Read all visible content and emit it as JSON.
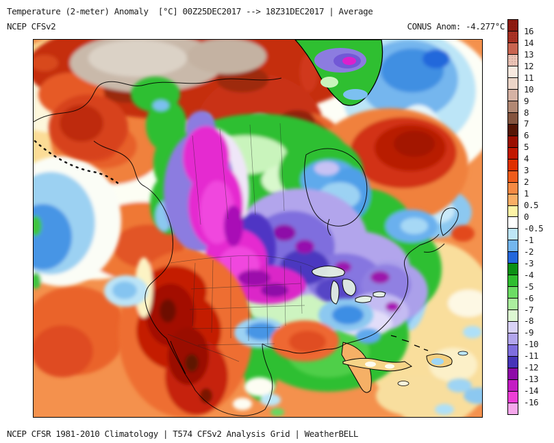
{
  "header": {
    "title": "Temperature (2-meter) Anomaly  [°C] 00Z25DEC2017 --> 18Z31DEC2017 | Average",
    "model": "NCEP CFSv2",
    "stat": "CONUS Anom: -4.277°C"
  },
  "footer": {
    "credit": "NCEP CFSR 1981-2010 Climatology | T574 CFSv2 Analysis Grid | WeatherBELL"
  },
  "colorbar": {
    "unit": "°C",
    "segments": [
      {
        "color": "#8E1B10",
        "label": "16",
        "stipple": true
      },
      {
        "color": "#A93224",
        "label": "14",
        "stipple": true
      },
      {
        "color": "#C86450",
        "label": "13"
      },
      {
        "color": "#EBC4B6",
        "label": "12",
        "stipple": true
      },
      {
        "color": "#F8E9DF",
        "label": "11"
      },
      {
        "color": "#ECD5C8",
        "label": "10"
      },
      {
        "color": "#D5B2A4",
        "label": "9"
      },
      {
        "color": "#B18874",
        "label": "8"
      },
      {
        "color": "#84543F",
        "label": "7"
      },
      {
        "color": "#551505",
        "label": "6"
      },
      {
        "color": "#9A0E00",
        "label": "5"
      },
      {
        "color": "#C11700",
        "label": "4"
      },
      {
        "color": "#DE3000",
        "label": "3"
      },
      {
        "color": "#EF5C1B",
        "label": "2"
      },
      {
        "color": "#F68A43",
        "label": "1"
      },
      {
        "color": "#FAAE65",
        "label": "0.5"
      },
      {
        "color": "#FDF3A6",
        "label": "0"
      },
      {
        "color": "#FFFFFF",
        "label": "-0.5"
      },
      {
        "color": "#BEE6F7",
        "label": "-1"
      },
      {
        "color": "#74B6EE",
        "label": "-2"
      },
      {
        "color": "#2467DB",
        "label": "-3"
      },
      {
        "color": "#0B9014",
        "label": "-4"
      },
      {
        "color": "#2FBE2F",
        "label": "-5"
      },
      {
        "color": "#6CDC64",
        "label": "-6"
      },
      {
        "color": "#ABEE9E",
        "label": "-7"
      },
      {
        "color": "#DDF8D2",
        "label": "-8"
      },
      {
        "color": "#D9D2F6",
        "label": "-9"
      },
      {
        "color": "#B2A5EC",
        "label": "-10"
      },
      {
        "color": "#7F6EDE",
        "label": "-11"
      },
      {
        "color": "#4634B8",
        "label": "-12"
      },
      {
        "color": "#8E0AA8",
        "label": "-13"
      },
      {
        "color": "#C31CC3",
        "label": "-14"
      },
      {
        "color": "#ED3FD6",
        "label": "-16"
      },
      {
        "color": "#F7A8EC"
      }
    ]
  },
  "map": {
    "features": [
      {
        "region": "Arctic Canada / Alaska North Slope",
        "anomaly_c": "+8 to +16",
        "color": "#C9B9AA"
      },
      {
        "region": "Western Canada cold pool (Yukon-BC-Prairies-N Plains)",
        "anomaly_c": "-12 to -16",
        "color": "#E52BD0"
      },
      {
        "region": "Upper Midwest / Great Lakes / Northeast",
        "anomaly_c": "-8 to -11",
        "color": "#8676E0"
      },
      {
        "region": "Central and Southeast US",
        "anomaly_c": "-3 to -7",
        "color": "#2FBF31"
      },
      {
        "region": "Southwest US / Northern Mexico",
        "anomaly_c": "+4 to +7",
        "color": "#C41D03"
      },
      {
        "region": "Labrador / Northeast Canada",
        "anomaly_c": "+4 to +6",
        "color": "#B81D04"
      },
      {
        "region": "North Atlantic south of Greenland",
        "anomaly_c": "-1 to -3",
        "color": "#74B6EE"
      },
      {
        "region": "Greenland interior",
        "anomaly_c": "-4 to -14",
        "color": "#8C7CE0"
      },
      {
        "region": "Surrounding oceans",
        "anomaly_c": "0 to +3",
        "color": "#F4914D"
      }
    ]
  }
}
